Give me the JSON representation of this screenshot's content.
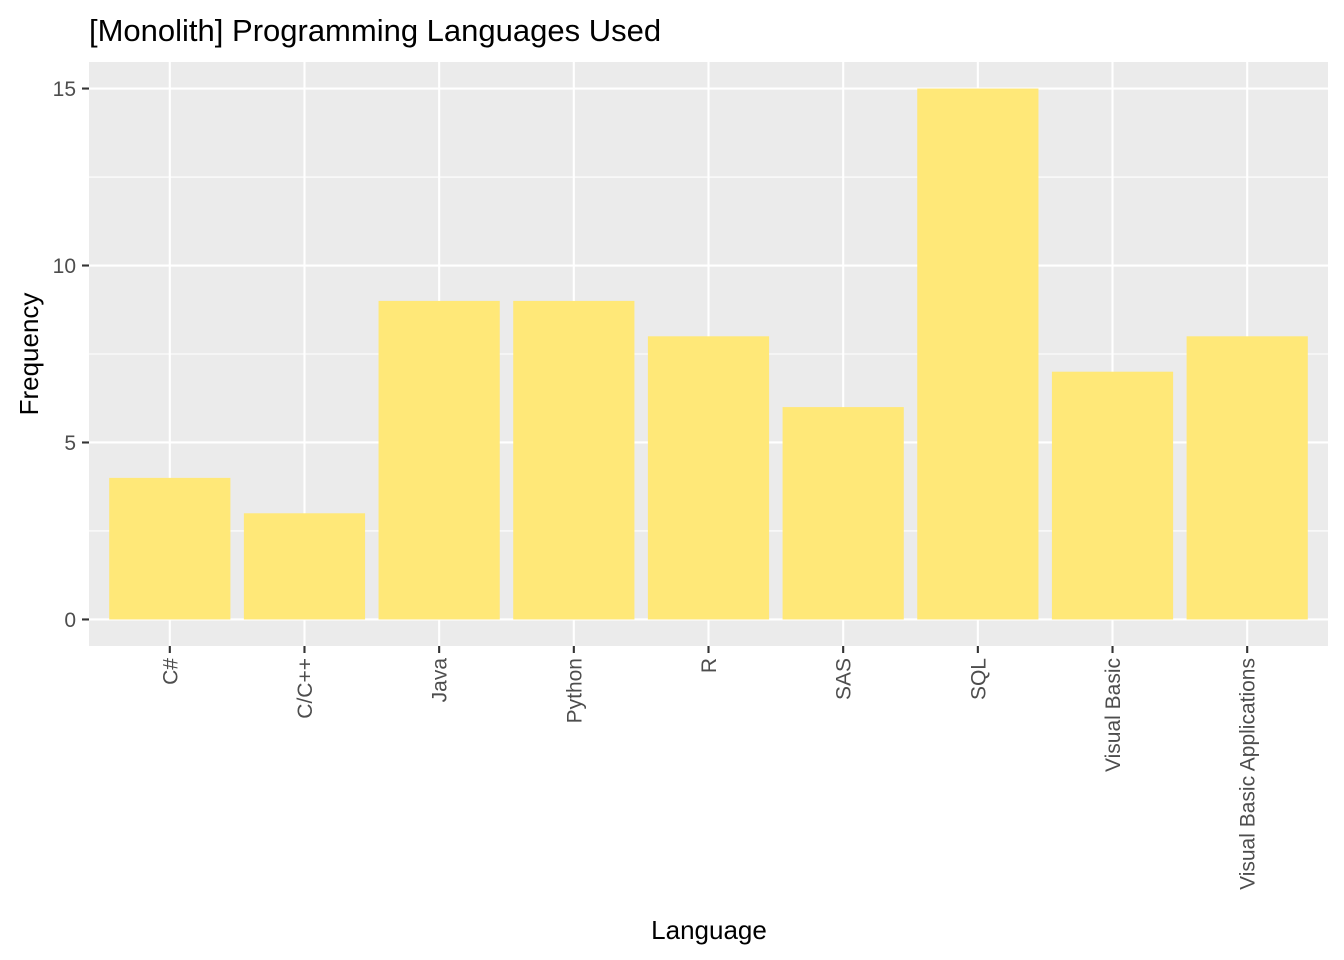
{
  "chart_data": {
    "type": "bar",
    "title": "[Monolith] Programming Languages Used",
    "xlabel": "Language",
    "ylabel": "Frequency",
    "categories": [
      "C#",
      "C/C++",
      "Java",
      "Python",
      "R",
      "SAS",
      "SQL",
      "Visual Basic",
      "Visual Basic Applications"
    ],
    "values": [
      4,
      3,
      9,
      9,
      8,
      6,
      15,
      7,
      8
    ],
    "y_ticks": [
      "0",
      "5",
      "10",
      "15"
    ],
    "ylim": [
      -0.75,
      15.75
    ],
    "grid": true,
    "legend": "none",
    "colors": {
      "bar": "#FFE878",
      "panel": "#EBEBEB",
      "grid": "#FFFFFF",
      "tick": "#333333",
      "tick_label": "#4D4D4D",
      "text": "#000000"
    }
  }
}
